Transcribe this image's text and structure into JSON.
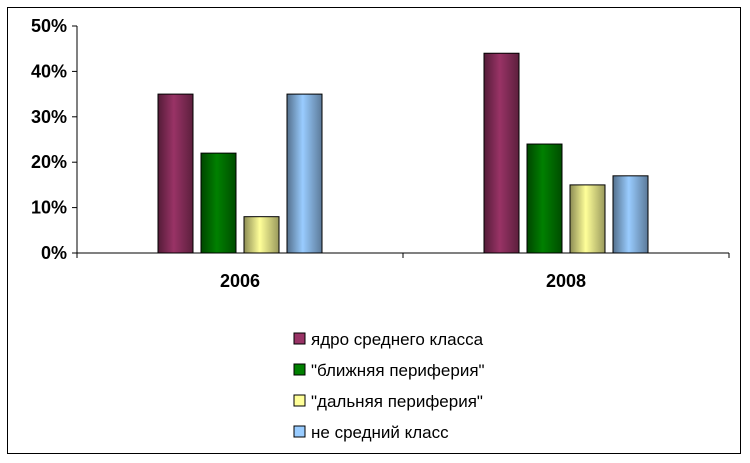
{
  "chart_data": {
    "type": "bar",
    "categories": [
      "2006",
      "2008"
    ],
    "series": [
      {
        "name": "ядро среднего класса",
        "values": [
          35,
          44
        ],
        "color": "#993366"
      },
      {
        "name": "\"ближняя периферия\"",
        "values": [
          22,
          24
        ],
        "color": "#008000"
      },
      {
        "name": "\"дальняя периферия\"",
        "values": [
          8,
          15
        ],
        "color": "#FFFF99"
      },
      {
        "name": "не средний класс",
        "values": [
          35,
          17
        ],
        "color": "#99CCFF"
      }
    ],
    "yticks": [
      "0%",
      "10%",
      "20%",
      "30%",
      "40%",
      "50%"
    ],
    "ylim": [
      0,
      50
    ],
    "legend_position": "bottom",
    "grid": false
  }
}
